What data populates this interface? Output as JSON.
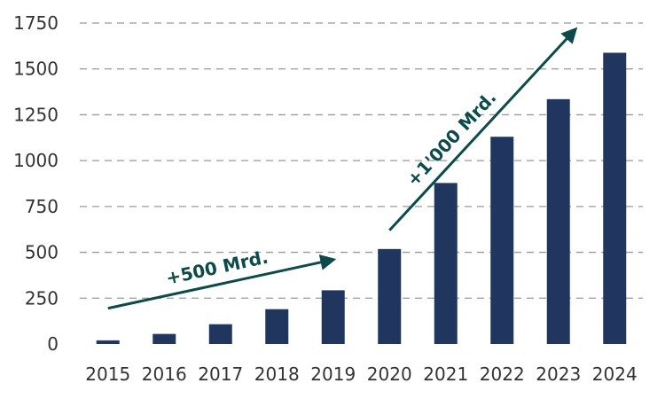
{
  "chart_data": {
    "type": "bar",
    "categories": [
      "2015",
      "2016",
      "2017",
      "2018",
      "2019",
      "2020",
      "2021",
      "2022",
      "2023",
      "2024"
    ],
    "values": [
      20,
      55,
      108,
      190,
      293,
      518,
      878,
      1130,
      1335,
      1588
    ],
    "ylim": [
      0,
      1750
    ],
    "yticks": [
      "0",
      "250",
      "500",
      "750",
      "1000",
      "1250",
      "1500",
      "1750"
    ],
    "grid": true,
    "annotations": [
      {
        "text": "+500 Mrd.",
        "x_from": 2015,
        "y_from": 195,
        "x_to": 2019,
        "y_to": 460
      },
      {
        "text": "+1'000 Mrd.",
        "x_from": 2020,
        "y_from": 620,
        "x_to": 2023.3,
        "y_to": 1715
      }
    ]
  },
  "colors": {
    "bar": "#20365f",
    "arrow": "#0d4a4a",
    "grid": "#9a9a9a"
  }
}
